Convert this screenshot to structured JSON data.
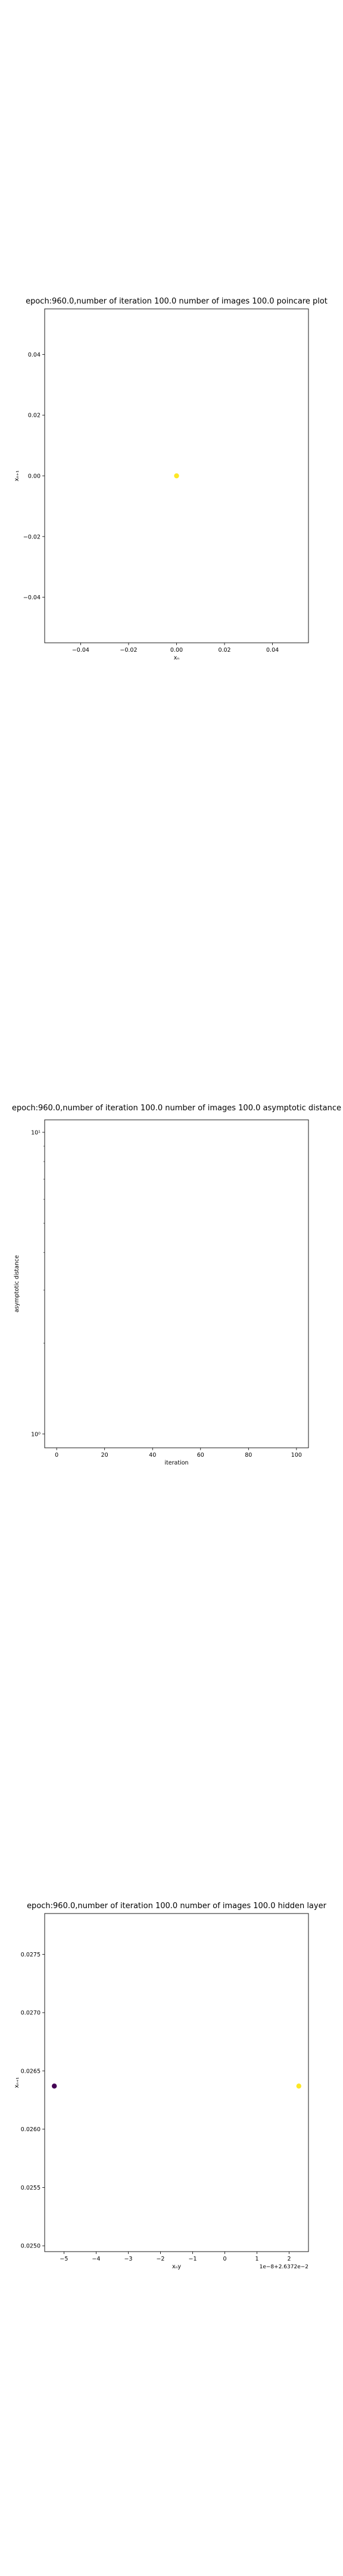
{
  "chart_data": [
    {
      "type": "scatter",
      "title": "epoch:960.0,number of iteration 100.0 number of images 100.0 poincare plot",
      "xlabel": "xₙ",
      "ylabel": "xₙ₊₁",
      "xlim": [
        -0.055,
        0.055
      ],
      "ylim": [
        -0.055,
        0.055
      ],
      "xticks": [
        -0.04,
        -0.02,
        0.0,
        0.02,
        0.04
      ],
      "xtick_labels": [
        "−0.04",
        "−0.02",
        "0.00",
        "0.02",
        "0.04"
      ],
      "yticks": [
        -0.04,
        -0.02,
        0.0,
        0.02,
        0.04
      ],
      "ytick_labels": [
        "−0.04",
        "−0.02",
        "0.00",
        "0.02",
        "0.04"
      ],
      "grid": false,
      "points": [
        {
          "x": 0.0,
          "y": 0.0,
          "color": "#fde725"
        }
      ]
    },
    {
      "type": "line",
      "title": "epoch:960.0,number of iteration 100.0  number of images 100.0 asymptotic distance",
      "xlabel": "iteration",
      "ylabel": "asymptotic distance",
      "xlim": [
        -5,
        105
      ],
      "ylim": [
        0.9,
        11
      ],
      "yscale": "log",
      "xticks": [
        0,
        20,
        40,
        60,
        80,
        100
      ],
      "xtick_labels": [
        "0",
        "20",
        "40",
        "60",
        "80",
        "100"
      ],
      "yticks": [
        1,
        10
      ],
      "ytick_labels": [
        "10⁰",
        "10¹"
      ],
      "grid": false,
      "series": []
    },
    {
      "type": "scatter",
      "title": "epoch:960.0,number of iteration 100.0  number of images 100.0 hidden layer",
      "xlabel": "xₙy",
      "ylabel": "xₙ₊₁",
      "x_offset_text": "1e−8+2.6372e−2",
      "xlim": [
        -5.6,
        2.6
      ],
      "ylim": [
        0.02495,
        0.02785
      ],
      "xticks": [
        -5,
        -4,
        -3,
        -2,
        -1,
        0,
        1,
        2
      ],
      "xtick_labels": [
        "−5",
        "−4",
        "−3",
        "−2",
        "−1",
        "0",
        "1",
        "2"
      ],
      "yticks": [
        0.025,
        0.0255,
        0.026,
        0.0265,
        0.027,
        0.0275
      ],
      "ytick_labels": [
        "0.0250",
        "0.0255",
        "0.0260",
        "0.0265",
        "0.0270",
        "0.0275"
      ],
      "grid": false,
      "points": [
        {
          "x": -5.3,
          "y": 0.02637,
          "color": "#440154"
        },
        {
          "x": 2.3,
          "y": 0.02637,
          "color": "#fde725"
        }
      ]
    }
  ]
}
